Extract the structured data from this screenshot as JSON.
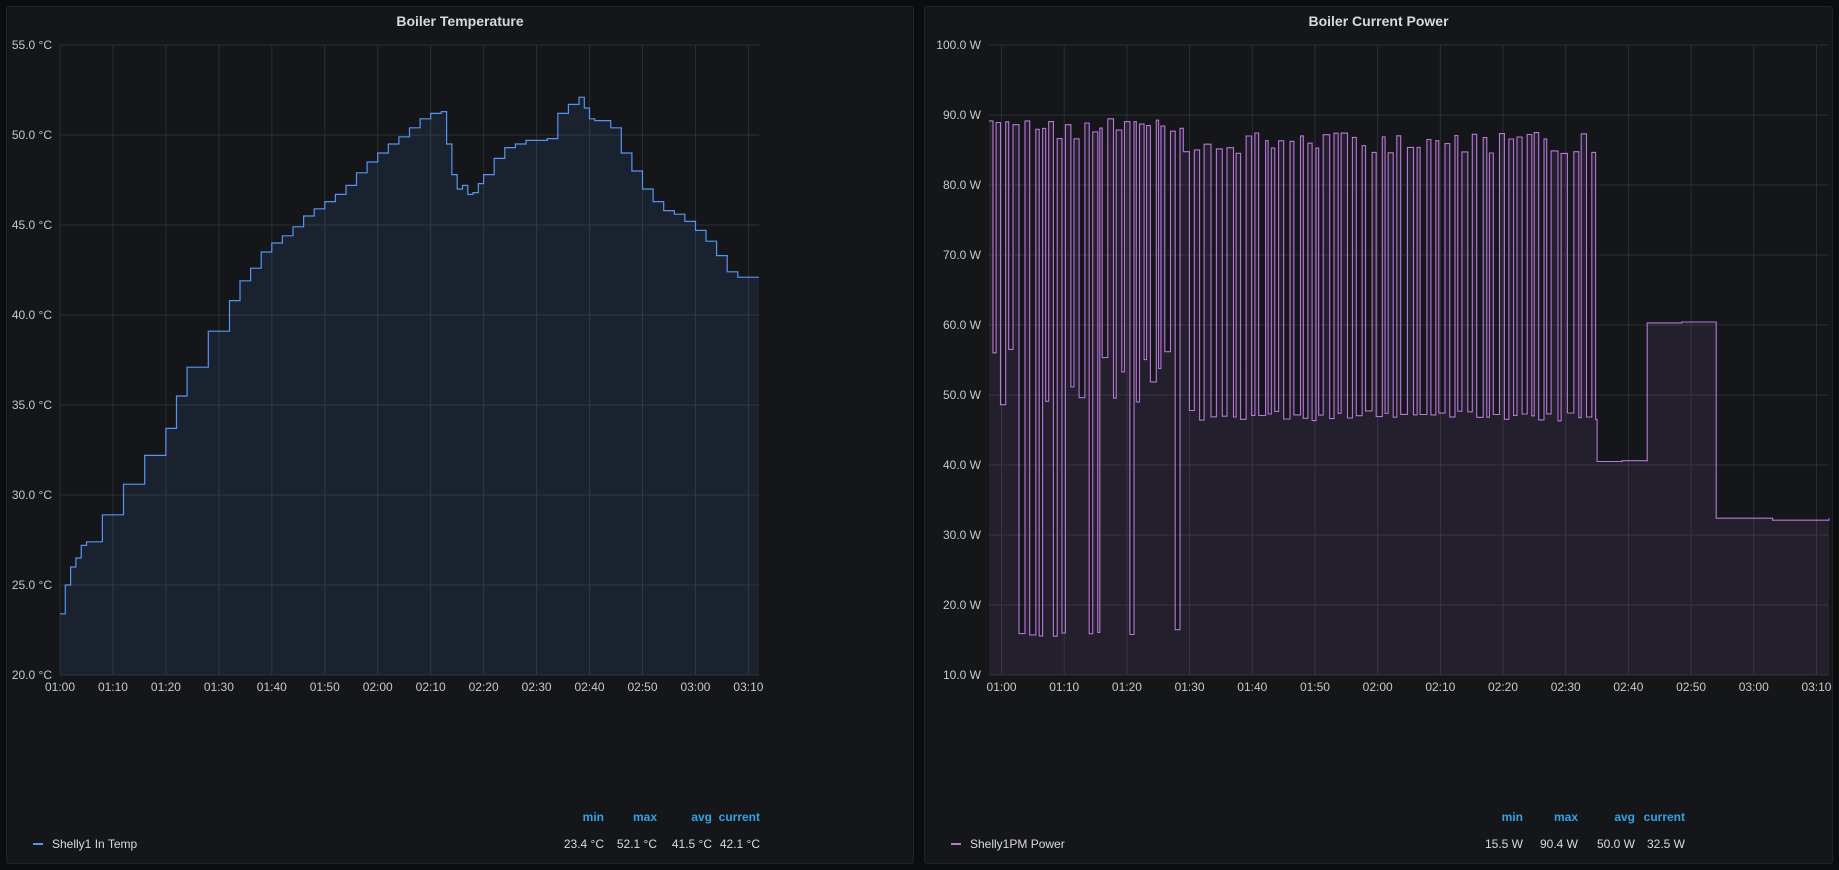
{
  "chart_data": [
    {
      "type": "area",
      "title": "Boiler Temperature",
      "unit": "°C",
      "ylim": [
        20,
        55
      ],
      "y_ticks": [
        "20.0 °C",
        "25.0 °C",
        "30.0 °C",
        "35.0 °C",
        "40.0 °C",
        "45.0 °C",
        "50.0 °C",
        "55.0 °C"
      ],
      "x_ticks": [
        "01:00",
        "01:10",
        "01:20",
        "01:30",
        "01:40",
        "01:50",
        "02:00",
        "02:10",
        "02:20",
        "02:30",
        "02:40",
        "02:50",
        "03:00",
        "03:10"
      ],
      "x_range_minutes": [
        0,
        132
      ],
      "grid": true,
      "legend_placement": "bottom-left",
      "color": "#5794f2",
      "series": [
        {
          "name": "Shelly1 In Temp",
          "x_minutes": [
            0,
            1,
            2,
            3,
            4,
            5,
            6,
            8,
            10,
            12,
            14,
            16,
            18,
            20,
            22,
            24,
            26,
            28,
            30,
            32,
            34,
            36,
            38,
            40,
            42,
            44,
            46,
            48,
            50,
            52,
            54,
            56,
            58,
            60,
            62,
            64,
            66,
            68,
            70,
            72,
            73,
            74,
            75,
            76,
            77,
            78,
            79,
            80,
            82,
            84,
            86,
            88,
            90,
            92,
            94,
            96,
            98,
            99,
            100,
            101,
            102,
            104,
            106,
            108,
            110,
            112,
            114,
            116,
            118,
            120,
            122,
            124,
            126,
            128,
            130,
            132
          ],
          "values": [
            23.4,
            25.0,
            26.0,
            26.5,
            27.2,
            27.4,
            27.4,
            28.9,
            28.9,
            30.6,
            30.6,
            32.2,
            32.2,
            33.7,
            35.5,
            37.1,
            37.1,
            39.1,
            39.1,
            40.8,
            41.9,
            42.6,
            43.5,
            44.0,
            44.4,
            44.9,
            45.5,
            45.9,
            46.3,
            46.7,
            47.2,
            47.9,
            48.5,
            49.0,
            49.5,
            49.9,
            50.4,
            50.9,
            51.2,
            51.3,
            49.5,
            47.8,
            47.0,
            47.2,
            46.7,
            46.8,
            47.3,
            47.8,
            48.7,
            49.3,
            49.5,
            49.7,
            49.7,
            49.8,
            51.2,
            51.7,
            52.1,
            51.5,
            50.9,
            50.8,
            50.8,
            50.4,
            49.0,
            48.0,
            47.0,
            46.3,
            45.8,
            45.6,
            45.2,
            44.7,
            44.1,
            43.3,
            42.4,
            42.1,
            42.1,
            42.1
          ]
        }
      ],
      "legend": {
        "headers": [
          "min",
          "max",
          "avg",
          "current"
        ],
        "values": [
          "23.4 °C",
          "52.1 °C",
          "41.5 °C",
          "42.1 °C"
        ]
      }
    },
    {
      "type": "area",
      "title": "Boiler Current Power",
      "unit": "W",
      "ylim": [
        10,
        100
      ],
      "y_ticks": [
        "10.0 W",
        "20.0 W",
        "30.0 W",
        "40.0 W",
        "50.0 W",
        "60.0 W",
        "70.0 W",
        "80.0 W",
        "90.0 W",
        "100.0 W"
      ],
      "x_ticks": [
        "01:00",
        "01:10",
        "01:20",
        "01:30",
        "01:40",
        "01:50",
        "02:00",
        "02:10",
        "02:20",
        "02:30",
        "02:40",
        "02:50",
        "03:00",
        "03:10"
      ],
      "x_range_minutes": [
        -2,
        132
      ],
      "grid": true,
      "legend_placement": "bottom-left",
      "color": "#b877d9",
      "series": [
        {
          "name": "Shelly1PM Power",
          "segments": [
            {
              "from": -2,
              "to": 29,
              "base": 49.0,
              "low": 15.5,
              "high": 89.5,
              "period": 0.65
            },
            {
              "from": 29,
              "to": 95,
              "base": 46.8,
              "low": 46.8,
              "high": 87.5,
              "period": 0.75
            },
            {
              "from": 95,
              "to": 103,
              "base": 40.5,
              "low": 40.5,
              "high": 40.8,
              "period": 0
            },
            {
              "from": 103,
              "to": 114,
              "base": 60.3,
              "low": 60.3,
              "high": 61.0,
              "period": 0
            },
            {
              "from": 114,
              "to": 132,
              "base": 32.4,
              "low": 32.2,
              "high": 32.8,
              "period": 0
            }
          ]
        }
      ],
      "legend": {
        "headers": [
          "min",
          "max",
          "avg",
          "current"
        ],
        "values": [
          "15.5 W",
          "90.4 W",
          "50.0 W",
          "32.5 W"
        ]
      }
    }
  ]
}
